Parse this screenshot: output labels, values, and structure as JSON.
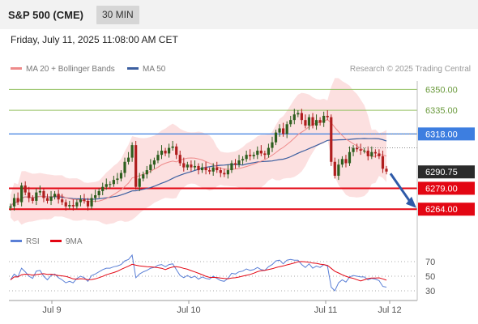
{
  "header": {
    "title": "S&P 500 (CME)",
    "timeframe": "30 MIN"
  },
  "datetime": "Friday, July 11, 2025 11:08:00 AM CET",
  "legend": {
    "ma20": "MA 20 + Bollinger Bands",
    "ma50": "MA 50",
    "rsi": "RSI",
    "rsi_ma": "9MA"
  },
  "watermark": "Research © 2025 Trading Central",
  "colors": {
    "bull": "#2d5e1e",
    "bear": "#b01e1e",
    "ma20": "#ee8a8a",
    "ma50": "#3c5fa0",
    "band": "#fbd6d6",
    "support": "#e30613",
    "pivot": "#3d7ee0",
    "target": "#96c264",
    "rsi": "#5a7fd6",
    "arrow": "#2e5aa8"
  },
  "chart_data": {
    "type": "candlestick",
    "x_ticks": [
      "Jul 9",
      "Jul 10",
      "Jul 11",
      "Jul 12"
    ],
    "y_range": [
      6256,
      6356
    ],
    "levels": [
      {
        "value": 6350.0,
        "label": "6350.00",
        "kind": "target"
      },
      {
        "value": 6335.0,
        "label": "6335.00",
        "kind": "target"
      },
      {
        "value": 6318.0,
        "label": "6318.00",
        "kind": "pivot"
      },
      {
        "value": 6279.0,
        "label": "6279.00",
        "kind": "support"
      },
      {
        "value": 6264.0,
        "label": "6264.00",
        "kind": "support"
      }
    ],
    "last_price": {
      "value": 6290.75,
      "label": "6290.75"
    },
    "closes": [
      6266,
      6272,
      6269,
      6281,
      6276,
      6272,
      6270,
      6276,
      6277,
      6272,
      6270,
      6273,
      6275,
      6271,
      6269,
      6266,
      6267,
      6266,
      6269,
      6271,
      6270,
      6266,
      6272,
      6274,
      6277,
      6280,
      6282,
      6282,
      6285,
      6286,
      6290,
      6298,
      6301,
      6310,
      6280,
      6286,
      6289,
      6292,
      6296,
      6299,
      6303,
      6306,
      6304,
      6308,
      6309,
      6303,
      6297,
      6294,
      6296,
      6294,
      6295,
      6292,
      6294,
      6292,
      6291,
      6294,
      6292,
      6290,
      6289,
      6292,
      6297,
      6296,
      6299,
      6300,
      6303,
      6302,
      6303,
      6306,
      6304,
      6303,
      6308,
      6312,
      6319,
      6322,
      6318,
      6325,
      6328,
      6332,
      6333,
      6328,
      6324,
      6330,
      6324,
      6328,
      6326,
      6331,
      6330,
      6298,
      6288,
      6296,
      6300,
      6297,
      6305,
      6308,
      6307,
      6306,
      6306,
      6302,
      6305,
      6304,
      6302,
      6293,
      6291
    ],
    "ma20_last": 6305,
    "ma50_last": 6310,
    "rsi": {
      "y_ticks": [
        70,
        50,
        30
      ],
      "y_range": [
        20,
        80
      ],
      "values": [
        45,
        53,
        49,
        61,
        56,
        50,
        47,
        57,
        58,
        50,
        45,
        51,
        53,
        48,
        45,
        41,
        43,
        41,
        47,
        50,
        48,
        43,
        51,
        53,
        56,
        59,
        61,
        61,
        63,
        64,
        66,
        71,
        73,
        79,
        48,
        53,
        56,
        58,
        61,
        62,
        65,
        66,
        63,
        66,
        67,
        59,
        51,
        48,
        51,
        48,
        50,
        46,
        49,
        47,
        46,
        50,
        47,
        44,
        43,
        47,
        54,
        53,
        56,
        57,
        60,
        58,
        59,
        62,
        59,
        58,
        63,
        66,
        71,
        72,
        67,
        72,
        73,
        72,
        72,
        66,
        62,
        67,
        61,
        64,
        62,
        66,
        64,
        35,
        30,
        41,
        45,
        42,
        49,
        51,
        50,
        49,
        49,
        45,
        47,
        46,
        44,
        36,
        35
      ]
    }
  }
}
